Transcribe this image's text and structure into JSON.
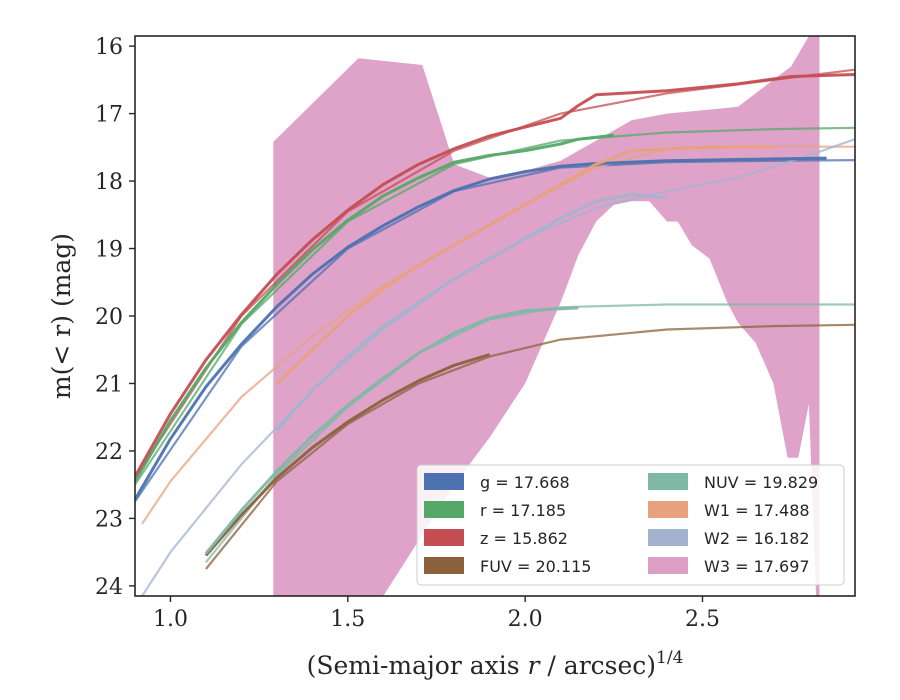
{
  "chart_data": {
    "type": "line",
    "x_axis": {
      "label_main": "(Semi-major axis ",
      "label_var": "r",
      "label_tail": " / arcsec)",
      "label_sup": "1/4",
      "xlim": [
        0.9,
        2.93
      ],
      "ticks": [
        1.0,
        1.5,
        2.0,
        2.5
      ],
      "tick_labels": [
        "1.0",
        "1.5",
        "2.0",
        "2.5"
      ]
    },
    "y_axis": {
      "label": "m(< r) (mag)",
      "ylim": [
        24.15,
        15.85
      ],
      "inverted": true,
      "ticks": [
        16,
        17,
        18,
        19,
        20,
        21,
        22,
        23,
        24
      ],
      "tick_labels": [
        "16",
        "17",
        "18",
        "19",
        "20",
        "21",
        "22",
        "23",
        "24"
      ]
    },
    "grid": false,
    "legend": {
      "placement": "lower-right",
      "columns": 2
    },
    "series": [
      {
        "key": "g",
        "legend_label": "g = 17.668",
        "color": "#4c72b0",
        "observed": [
          [
            0.9,
            22.72
          ],
          [
            1.0,
            21.82
          ],
          [
            1.1,
            21.05
          ],
          [
            1.2,
            20.42
          ],
          [
            1.3,
            19.86
          ],
          [
            1.4,
            19.38
          ],
          [
            1.5,
            18.98
          ],
          [
            1.6,
            18.66
          ],
          [
            1.7,
            18.38
          ],
          [
            1.8,
            18.14
          ],
          [
            1.9,
            17.97
          ],
          [
            2.0,
            17.86
          ],
          [
            2.1,
            17.78
          ],
          [
            2.2,
            17.74
          ],
          [
            2.4,
            17.7
          ],
          [
            2.6,
            17.68
          ],
          [
            2.85,
            17.66
          ]
        ],
        "model": [
          [
            0.9,
            22.75
          ],
          [
            1.2,
            20.45
          ],
          [
            1.5,
            19.0
          ],
          [
            1.8,
            18.15
          ],
          [
            2.1,
            17.8
          ],
          [
            2.4,
            17.72
          ],
          [
            2.7,
            17.7
          ],
          [
            2.93,
            17.69
          ]
        ]
      },
      {
        "key": "r",
        "legend_label": "r = 17.185",
        "color": "#55a868",
        "observed": [
          [
            0.9,
            22.45
          ],
          [
            1.0,
            21.55
          ],
          [
            1.1,
            20.77
          ],
          [
            1.2,
            20.1
          ],
          [
            1.3,
            19.53
          ],
          [
            1.4,
            19.02
          ],
          [
            1.5,
            18.58
          ],
          [
            1.6,
            18.22
          ],
          [
            1.7,
            17.95
          ],
          [
            1.8,
            17.72
          ],
          [
            1.9,
            17.62
          ],
          [
            2.0,
            17.55
          ],
          [
            2.1,
            17.45
          ],
          [
            2.15,
            17.38
          ],
          [
            2.25,
            17.32
          ]
        ],
        "model": [
          [
            0.9,
            22.5
          ],
          [
            1.2,
            20.12
          ],
          [
            1.5,
            18.6
          ],
          [
            1.8,
            17.75
          ],
          [
            2.1,
            17.4
          ],
          [
            2.4,
            17.28
          ],
          [
            2.7,
            17.23
          ],
          [
            2.93,
            17.21
          ]
        ]
      },
      {
        "key": "z",
        "legend_label": "z = 15.862",
        "color": "#c44e52",
        "observed": [
          [
            0.9,
            22.38
          ],
          [
            1.0,
            21.45
          ],
          [
            1.1,
            20.65
          ],
          [
            1.2,
            19.98
          ],
          [
            1.3,
            19.38
          ],
          [
            1.4,
            18.87
          ],
          [
            1.5,
            18.43
          ],
          [
            1.6,
            18.05
          ],
          [
            1.7,
            17.75
          ],
          [
            1.8,
            17.52
          ],
          [
            1.9,
            17.33
          ],
          [
            2.0,
            17.2
          ],
          [
            2.1,
            17.07
          ],
          [
            2.15,
            16.88
          ],
          [
            2.2,
            16.72
          ],
          [
            2.4,
            16.66
          ],
          [
            2.6,
            16.56
          ],
          [
            2.75,
            16.45
          ],
          [
            2.93,
            16.42
          ]
        ],
        "model": [
          [
            0.9,
            22.4
          ],
          [
            1.2,
            20.0
          ],
          [
            1.5,
            18.45
          ],
          [
            1.8,
            17.55
          ],
          [
            2.1,
            17.0
          ],
          [
            2.4,
            16.7
          ],
          [
            2.7,
            16.5
          ],
          [
            2.93,
            16.35
          ]
        ]
      },
      {
        "key": "FUV",
        "legend_label": "FUV = 20.115",
        "color": "#8c613c",
        "observed": [
          [
            1.1,
            23.55
          ],
          [
            1.2,
            22.95
          ],
          [
            1.3,
            22.4
          ],
          [
            1.4,
            21.95
          ],
          [
            1.5,
            21.57
          ],
          [
            1.6,
            21.24
          ],
          [
            1.7,
            20.96
          ],
          [
            1.8,
            20.73
          ],
          [
            1.9,
            20.57
          ]
        ],
        "model": [
          [
            1.1,
            23.75
          ],
          [
            1.3,
            22.45
          ],
          [
            1.5,
            21.6
          ],
          [
            1.7,
            21.0
          ],
          [
            1.9,
            20.6
          ],
          [
            2.1,
            20.35
          ],
          [
            2.4,
            20.2
          ],
          [
            2.7,
            20.15
          ],
          [
            2.93,
            20.13
          ]
        ]
      },
      {
        "key": "NUV",
        "legend_label": "NUV = 19.829",
        "color": "#7fb8a4",
        "observed": [
          [
            1.1,
            23.52
          ],
          [
            1.2,
            22.88
          ],
          [
            1.3,
            22.3
          ],
          [
            1.4,
            21.78
          ],
          [
            1.5,
            21.32
          ],
          [
            1.6,
            20.92
          ],
          [
            1.7,
            20.55
          ],
          [
            1.8,
            20.25
          ],
          [
            1.9,
            20.03
          ],
          [
            2.0,
            19.92
          ],
          [
            2.15,
            19.88
          ]
        ],
        "model": [
          [
            1.1,
            23.65
          ],
          [
            1.3,
            22.35
          ],
          [
            1.5,
            21.35
          ],
          [
            1.7,
            20.55
          ],
          [
            1.9,
            20.05
          ],
          [
            2.1,
            19.87
          ],
          [
            2.4,
            19.83
          ],
          [
            2.7,
            19.83
          ],
          [
            2.93,
            19.83
          ]
        ]
      },
      {
        "key": "W1",
        "legend_label": "W1 = 17.488",
        "color": "#e8a17e",
        "observed": [
          [
            1.3,
            21.0
          ],
          [
            1.4,
            20.5
          ],
          [
            1.5,
            20.0
          ],
          [
            1.6,
            19.6
          ],
          [
            1.7,
            19.25
          ],
          [
            1.8,
            18.95
          ],
          [
            1.9,
            18.65
          ],
          [
            2.0,
            18.35
          ],
          [
            2.1,
            18.05
          ],
          [
            2.2,
            17.75
          ],
          [
            2.3,
            17.55
          ],
          [
            2.5,
            17.5
          ],
          [
            2.7,
            17.49
          ]
        ],
        "model": [
          [
            0.92,
            23.08
          ],
          [
            1.0,
            22.45
          ],
          [
            1.2,
            21.2
          ],
          [
            1.4,
            20.3
          ],
          [
            1.6,
            19.55
          ],
          [
            1.8,
            18.95
          ],
          [
            2.0,
            18.35
          ],
          [
            2.2,
            17.8
          ],
          [
            2.4,
            17.52
          ],
          [
            2.7,
            17.49
          ],
          [
            2.93,
            17.49
          ]
        ]
      },
      {
        "key": "W2",
        "legend_label": "W2 = 16.182",
        "color": "#a3b3cf",
        "observed": [
          [
            1.3,
            21.7
          ],
          [
            1.4,
            21.1
          ],
          [
            1.5,
            20.6
          ],
          [
            1.6,
            20.15
          ],
          [
            1.7,
            19.8
          ],
          [
            1.8,
            19.45
          ],
          [
            1.9,
            19.15
          ],
          [
            2.0,
            18.85
          ],
          [
            2.1,
            18.55
          ],
          [
            2.2,
            18.3
          ],
          [
            2.3,
            18.2
          ],
          [
            2.4,
            18.25
          ]
        ],
        "model": [
          [
            0.92,
            24.15
          ],
          [
            1.0,
            23.5
          ],
          [
            1.2,
            22.2
          ],
          [
            1.4,
            21.1
          ],
          [
            1.6,
            20.2
          ],
          [
            1.8,
            19.45
          ],
          [
            2.0,
            18.85
          ],
          [
            2.2,
            18.4
          ],
          [
            2.4,
            18.15
          ],
          [
            2.6,
            17.95
          ],
          [
            2.8,
            17.62
          ],
          [
            2.93,
            17.38
          ]
        ]
      },
      {
        "key": "W3",
        "legend_label": "W3 = 17.697",
        "color": "#dd9ec6",
        "band_upper": [
          [
            1.29,
            17.42
          ],
          [
            1.53,
            16.18
          ],
          [
            1.71,
            16.28
          ],
          [
            1.8,
            17.75
          ],
          [
            1.9,
            17.95
          ],
          [
            2.0,
            17.85
          ],
          [
            2.1,
            17.7
          ],
          [
            2.2,
            17.4
          ],
          [
            2.3,
            17.1
          ],
          [
            2.4,
            17.0
          ],
          [
            2.5,
            16.95
          ],
          [
            2.6,
            16.9
          ],
          [
            2.65,
            16.7
          ],
          [
            2.7,
            16.5
          ],
          [
            2.75,
            16.3
          ],
          [
            2.8,
            15.85
          ],
          [
            2.83,
            15.85
          ]
        ],
        "band_lower": [
          [
            1.29,
            24.15
          ],
          [
            1.6,
            24.15
          ],
          [
            1.8,
            22.5
          ],
          [
            1.9,
            21.8
          ],
          [
            2.0,
            21.0
          ],
          [
            2.05,
            20.4
          ],
          [
            2.1,
            19.8
          ],
          [
            2.15,
            19.1
          ],
          [
            2.2,
            18.6
          ],
          [
            2.25,
            18.35
          ],
          [
            2.3,
            18.3
          ],
          [
            2.35,
            18.3
          ],
          [
            2.4,
            18.6
          ],
          [
            2.43,
            18.6
          ],
          [
            2.47,
            18.95
          ],
          [
            2.52,
            19.15
          ],
          [
            2.57,
            19.8
          ],
          [
            2.6,
            20.1
          ],
          [
            2.65,
            20.4
          ],
          [
            2.7,
            21.0
          ],
          [
            2.74,
            22.1
          ],
          [
            2.77,
            22.1
          ],
          [
            2.8,
            21.3
          ],
          [
            2.82,
            24.15
          ],
          [
            2.83,
            24.15
          ]
        ]
      }
    ]
  }
}
